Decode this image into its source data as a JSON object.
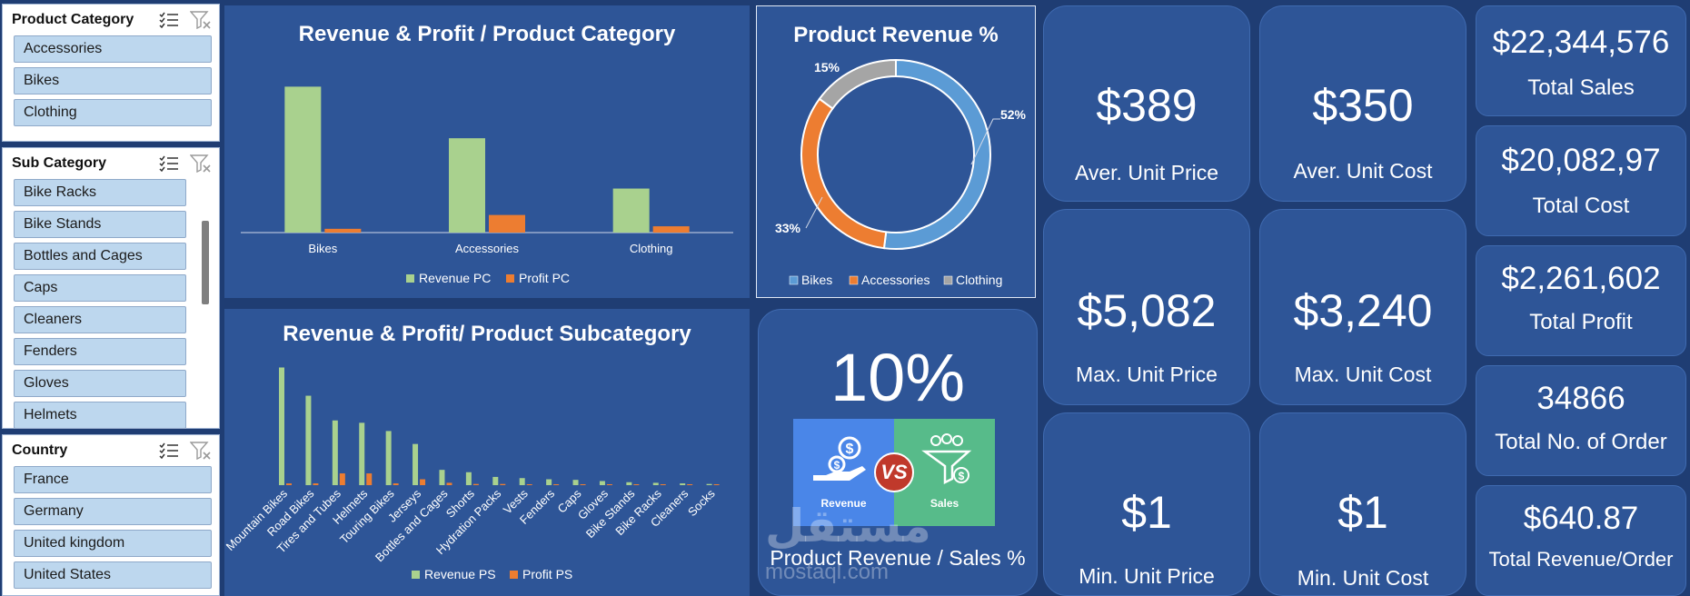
{
  "slicers": {
    "product_category": {
      "title": "Product Category",
      "items": [
        "Accessories",
        "Bikes",
        "Clothing"
      ]
    },
    "sub_category": {
      "title": "Sub Category",
      "items": [
        "Bike Racks",
        "Bike Stands",
        "Bottles and Cages",
        "Caps",
        "Cleaners",
        "Fenders",
        "Gloves",
        "Helmets"
      ]
    },
    "country": {
      "title": "Country",
      "items": [
        "France",
        "Germany",
        "United kingdom",
        "United States"
      ]
    }
  },
  "chart_data": [
    {
      "type": "bar",
      "title": "Revenue & Profit / Product Category",
      "categories": [
        "Bikes",
        "Accessories",
        "Clothing"
      ],
      "series": [
        {
          "name": "Revenue PC",
          "color": "#a9d18e",
          "values": [
            11.6,
            7.5,
            3.5
          ]
        },
        {
          "name": "Profit PC",
          "color": "#ed7d31",
          "values": [
            0.3,
            1.4,
            0.5
          ]
        }
      ],
      "ylim": [
        0,
        13
      ],
      "legend": "bottom"
    },
    {
      "type": "pie",
      "title": "Product Revenue %",
      "categories": [
        "Bikes",
        "Accessories",
        "Clothing"
      ],
      "values": [
        52,
        33,
        15
      ],
      "labels": [
        "52%",
        "33%",
        "15%"
      ],
      "colors": [
        "#5b9bd5",
        "#ed7d31",
        "#a5a5a5"
      ],
      "legend": "bottom"
    },
    {
      "type": "bar",
      "title": "Revenue & Profit/ Product Subcategory",
      "categories": [
        "Mountain Bikes",
        "Road Bikes",
        "Tires and Tubes",
        "Helmets",
        "Touring Bikes",
        "Jerseys",
        "Bottles and Cages",
        "Shorts",
        "Hydration Packs",
        "Vests",
        "Fenders",
        "Caps",
        "Gloves",
        "Bike Stands",
        "Bike Racks",
        "Cleaners",
        "Socks"
      ],
      "series": [
        {
          "name": "Revenue PS",
          "color": "#a9d18e",
          "values": [
            100,
            76,
            55,
            53,
            46,
            35,
            13,
            11,
            7,
            6,
            5,
            4.5,
            3.5,
            2.5,
            2,
            1.5,
            1
          ]
        },
        {
          "name": "Profit PS",
          "color": "#ed7d31",
          "values": [
            1.5,
            1.5,
            10,
            10,
            1.5,
            5,
            2,
            1,
            1,
            0.5,
            0.5,
            0.5,
            0.5,
            0.3,
            0.3,
            0.3,
            0.2
          ]
        }
      ],
      "ylim": [
        0,
        105
      ],
      "legend": "bottom"
    }
  ],
  "revenue_sales": {
    "percent": "10%",
    "left_label": "Revenue",
    "vs_label": "VS",
    "right_label": "Sales",
    "caption": "Product Revenue / Sales %"
  },
  "kpis": {
    "avg_unit_price": {
      "value": "$389",
      "label": "Aver. Unit Price"
    },
    "avg_unit_cost": {
      "value": "$350",
      "label": "Aver. Unit Cost"
    },
    "max_unit_price": {
      "value": "$5,082",
      "label": "Max. Unit Price"
    },
    "max_unit_cost": {
      "value": "$3,240",
      "label": "Max. Unit Cost"
    },
    "min_unit_price": {
      "value": "$1",
      "label": "Min. Unit Price"
    },
    "min_unit_cost": {
      "value": "$1",
      "label": "Min. Unit Cost"
    },
    "total_sales": {
      "value": "$22,344,576",
      "label": "Total Sales"
    },
    "total_cost": {
      "value": "$20,082,97",
      "label": "Total Cost"
    },
    "total_profit": {
      "value": "$2,261,602",
      "label": "Total Profit"
    },
    "total_orders": {
      "value": "34866",
      "label": "Total No. of Order"
    },
    "revenue_per_order": {
      "value": "$640.87",
      "label": "Total Revenue/Order"
    }
  },
  "watermark": {
    "arabic": "مستقل",
    "latin": "mostaql.com"
  },
  "colors": {
    "background": "#1f3d73",
    "panel": "#2e5597",
    "revenue": "#a9d18e",
    "profit": "#ed7d31"
  }
}
